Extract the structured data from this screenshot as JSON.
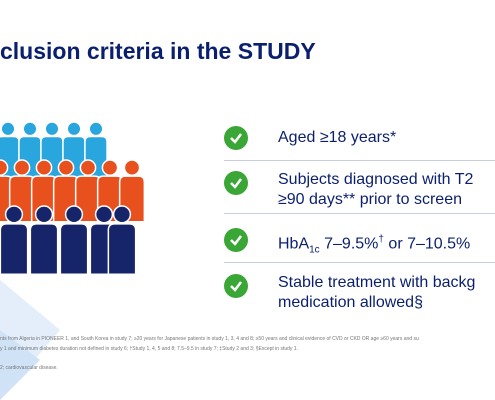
{
  "title": "clusion criteria in the STUDY",
  "criteria": [
    {
      "text": "Aged ≥18 years*"
    },
    {
      "lines": [
        "Subjects diagnosed with T2",
        "≥90 days** prior to screen"
      ]
    },
    {
      "base": "HbA",
      "subscript": "1c",
      "text": " 7–9.5%",
      "superscript": "†",
      "rest": " or 7–10.5%"
    },
    {
      "lines": [
        "Stable treatment with backg",
        "medication allowed§"
      ]
    }
  ],
  "footnotes": [
    "nts from Algeria in PIONEER 1, and South Korea in study 7; ≥20 years for Japanese patients in study 1, 3, 4 and 8; ≥50 years and clinical evidence of CVD or CKD OR age ≥60 years and su",
    "y 1 and minimum diabetes duration not defined in study 6; †Study 1, 4, 5 and 8; 7.5–9.5 in study 7; ‡Study 2 and 3; §Except in study 1.",
    "2; cardiovascular disease."
  ]
}
